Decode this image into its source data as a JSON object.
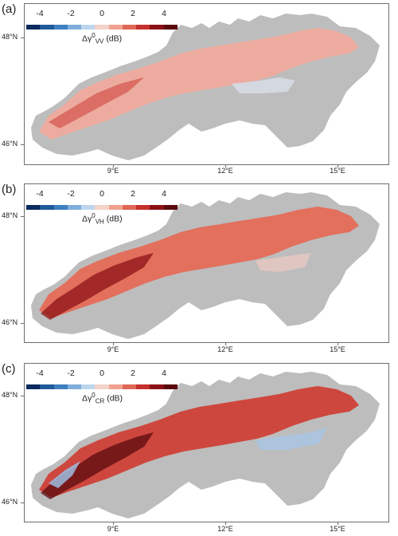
{
  "colorbar": {
    "ticks": [
      "-4",
      "-2",
      "0",
      "2",
      "4"
    ],
    "colors": [
      "#0b2a5e",
      "#1f5a9a",
      "#3e7fc0",
      "#7faedb",
      "#bdd6ee",
      "#f4d3c9",
      "#f0a18f",
      "#e06655",
      "#c4302c",
      "#8c1117",
      "#5a0a0d"
    ],
    "unit": "(dB)",
    "symbol": "Δγ"
  },
  "axes": {
    "lat_labels": [
      "48°N",
      "46°N"
    ],
    "lon_labels": [
      "9°E",
      "12°E",
      "15°E"
    ]
  },
  "panels": [
    {
      "label": "(a)",
      "subscript": "VV",
      "style": "vv"
    },
    {
      "label": "(b)",
      "subscript": "VH",
      "style": "vh"
    },
    {
      "label": "(c)",
      "subscript": "CR",
      "style": "cr"
    }
  ],
  "colors": {
    "region_gray": "#bdbdbd",
    "frame": "#6e6e6e"
  }
}
